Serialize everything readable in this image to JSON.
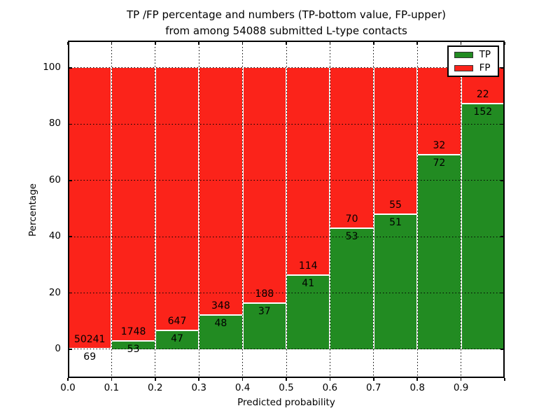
{
  "chart_data": {
    "type": "bar",
    "stacked": true,
    "normalized_to_percent": true,
    "title_line1": "TP /FP percentage and numbers (TP-bottom value, FP-upper)",
    "title_line2": "from among 54088 submitted L-type contacts",
    "total_contacts": 54088,
    "xlabel": "Predicted probability",
    "ylabel": "Percentage",
    "xlim": [
      0.0,
      1.0
    ],
    "ylim": [
      -10.2,
      109.7
    ],
    "yticks": [
      0,
      20,
      40,
      60,
      80,
      100
    ],
    "xticks": [
      {
        "value": 0.0,
        "label": "0.0"
      },
      {
        "value": 0.1,
        "label": "0.1"
      },
      {
        "value": 0.2,
        "label": "0.2"
      },
      {
        "value": 0.3,
        "label": "0.3"
      },
      {
        "value": 0.4,
        "label": "0.4"
      },
      {
        "value": 0.5,
        "label": "0.5"
      },
      {
        "value": 0.6,
        "label": "0.6"
      },
      {
        "value": 0.7,
        "label": "0.7"
      },
      {
        "value": 0.8,
        "label": "0.8"
      },
      {
        "value": 0.9,
        "label": "0.9"
      }
    ],
    "grid": {
      "visible": true,
      "style": "dotted",
      "color": "#000000"
    },
    "bins": [
      {
        "range": [
          0.0,
          0.1
        ],
        "tp": 69,
        "fp": 50241,
        "tp_percent": 0.14
      },
      {
        "range": [
          0.1,
          0.2
        ],
        "tp": 53,
        "fp": 1748,
        "tp_percent": 2.94
      },
      {
        "range": [
          0.2,
          0.3
        ],
        "tp": 47,
        "fp": 647,
        "tp_percent": 6.77
      },
      {
        "range": [
          0.3,
          0.4
        ],
        "tp": 48,
        "fp": 348,
        "tp_percent": 12.12
      },
      {
        "range": [
          0.4,
          0.5
        ],
        "tp": 37,
        "fp": 188,
        "tp_percent": 16.44
      },
      {
        "range": [
          0.5,
          0.6
        ],
        "tp": 41,
        "fp": 114,
        "tp_percent": 26.45
      },
      {
        "range": [
          0.6,
          0.7
        ],
        "tp": 53,
        "fp": 70,
        "tp_percent": 43.09
      },
      {
        "range": [
          0.7,
          0.8
        ],
        "tp": 51,
        "fp": 55,
        "tp_percent": 48.11
      },
      {
        "range": [
          0.8,
          0.9
        ],
        "tp": 72,
        "fp": 32,
        "tp_percent": 69.23
      },
      {
        "range": [
          0.9,
          1.0
        ],
        "tp": 152,
        "fp": 22,
        "tp_percent": 87.36
      }
    ],
    "colors": {
      "tp": "#228b22",
      "fp": "#fb231a",
      "bar_edge": "#ffffff",
      "background": "#ffffff"
    },
    "legend": {
      "position": "upper right",
      "entries": [
        {
          "label": "TP",
          "color": "#228b22"
        },
        {
          "label": "FP",
          "color": "#fb231a"
        }
      ]
    }
  }
}
